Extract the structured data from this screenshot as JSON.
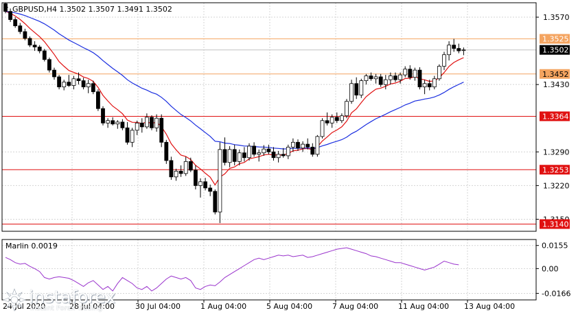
{
  "window": {
    "symbol_title": "GBPUSD,H4  1.3502 1.3507 1.3491 1.3502"
  },
  "price_axis": {
    "ticks": [
      "1.3570",
      "1.3430",
      "1.3290",
      "1.3220",
      "1.3150"
    ]
  },
  "levels": [
    {
      "label": "1.3525",
      "value": 1.3525,
      "color": "#f4a460",
      "text_color": "#ffffff"
    },
    {
      "label": "1.3452",
      "value": 1.3452,
      "color": "#f4a460",
      "text_color": "#000000"
    },
    {
      "label": "1.3364",
      "value": 1.3364,
      "color": "#e01010",
      "text_color": "#ffffff"
    },
    {
      "label": "1.3253",
      "value": 1.3253,
      "color": "#e01010",
      "text_color": "#ffffff"
    },
    {
      "label": "1.3140",
      "value": 1.314,
      "color": "#e01010",
      "text_color": "#ffffff"
    }
  ],
  "current_price": {
    "label": "1.3502",
    "value": 1.3502
  },
  "time_axis": {
    "labels": [
      "24 Jul 2020",
      "28 Jul 04:00",
      "30 Jul 04:00",
      "1 Aug 04:00",
      "5 Aug 04:00",
      "7 Aug 04:00",
      "11 Aug 04:00",
      "13 Aug 04:00"
    ]
  },
  "indicator": {
    "name": "Marlin 0.0019",
    "ticks": [
      "0.0155",
      "0.00",
      "-0.0166"
    ],
    "color": "#9932cc"
  },
  "branding": {
    "name": "instaforex",
    "tagline": "Instant Forex Trading"
  },
  "colors": {
    "grid": "#d4d4d4",
    "bull_body": "#ffffff",
    "bear_body": "#000000",
    "candle_outline": "#000000",
    "ma_fast": "#e01010",
    "ma_slow": "#1a2ee0",
    "price_tag_bg": "#000000"
  },
  "chart_data": {
    "type": "candlestick",
    "title": "GBPUSD,H4  1.3502 1.3507 1.3491 1.3502",
    "ylim": [
      1.3125,
      1.36
    ],
    "candles": [
      [
        1.3598,
        1.3605,
        1.3578,
        1.3582
      ],
      [
        1.3582,
        1.3588,
        1.356,
        1.3565
      ],
      [
        1.3565,
        1.357,
        1.3548,
        1.3552
      ],
      [
        1.3552,
        1.3558,
        1.3535,
        1.354
      ],
      [
        1.354,
        1.3546,
        1.3522,
        1.3526
      ],
      [
        1.3526,
        1.353,
        1.3508,
        1.3512
      ],
      [
        1.3512,
        1.352,
        1.35,
        1.3508
      ],
      [
        1.3508,
        1.3512,
        1.3495,
        1.35
      ],
      [
        1.35,
        1.3504,
        1.3478,
        1.3482
      ],
      [
        1.3482,
        1.3486,
        1.3455,
        1.346
      ],
      [
        1.346,
        1.3465,
        1.344,
        1.3446
      ],
      [
        1.3446,
        1.345,
        1.342,
        1.3425
      ],
      [
        1.3425,
        1.344,
        1.3418,
        1.3435
      ],
      [
        1.3435,
        1.345,
        1.3425,
        1.3428
      ],
      [
        1.3428,
        1.3448,
        1.342,
        1.3442
      ],
      [
        1.3442,
        1.3455,
        1.343,
        1.3438
      ],
      [
        1.3438,
        1.3444,
        1.342,
        1.3425
      ],
      [
        1.3425,
        1.344,
        1.3412,
        1.3432
      ],
      [
        1.3432,
        1.3438,
        1.341,
        1.3415
      ],
      [
        1.3415,
        1.342,
        1.3375,
        1.338
      ],
      [
        1.338,
        1.3385,
        1.3345,
        1.335
      ],
      [
        1.335,
        1.336,
        1.334,
        1.3355
      ],
      [
        1.3355,
        1.3362,
        1.3345,
        1.3348
      ],
      [
        1.3348,
        1.3356,
        1.3338,
        1.3352
      ],
      [
        1.3352,
        1.3358,
        1.3335,
        1.334
      ],
      [
        1.334,
        1.3352,
        1.3305,
        1.331
      ],
      [
        1.331,
        1.334,
        1.33,
        1.3335
      ],
      [
        1.3335,
        1.3355,
        1.3325,
        1.335
      ],
      [
        1.335,
        1.336,
        1.333,
        1.3342
      ],
      [
        1.3342,
        1.337,
        1.3338,
        1.3362
      ],
      [
        1.3362,
        1.3366,
        1.3335,
        1.334
      ],
      [
        1.334,
        1.3368,
        1.3332,
        1.336
      ],
      [
        1.336,
        1.3368,
        1.33,
        1.331
      ],
      [
        1.331,
        1.3315,
        1.3265,
        1.3272
      ],
      [
        1.3272,
        1.328,
        1.3232,
        1.3238
      ],
      [
        1.3238,
        1.3255,
        1.323,
        1.325
      ],
      [
        1.325,
        1.3262,
        1.3238,
        1.3245
      ],
      [
        1.3245,
        1.328,
        1.324,
        1.327
      ],
      [
        1.327,
        1.3278,
        1.3248,
        1.3252
      ],
      [
        1.3252,
        1.3262,
        1.3212,
        1.322
      ],
      [
        1.322,
        1.3235,
        1.3195,
        1.3228
      ],
      [
        1.3228,
        1.3236,
        1.321,
        1.3215
      ],
      [
        1.3215,
        1.3222,
        1.3198,
        1.3208
      ],
      [
        1.3208,
        1.3212,
        1.316,
        1.3165
      ],
      [
        1.3165,
        1.331,
        1.3142,
        1.3295
      ],
      [
        1.3295,
        1.332,
        1.3262,
        1.3268
      ],
      [
        1.3268,
        1.3302,
        1.3258,
        1.3295
      ],
      [
        1.3295,
        1.3305,
        1.3262,
        1.327
      ],
      [
        1.327,
        1.3295,
        1.3262,
        1.3288
      ],
      [
        1.3288,
        1.33,
        1.327,
        1.3278
      ],
      [
        1.3278,
        1.3308,
        1.3272,
        1.3302
      ],
      [
        1.3302,
        1.331,
        1.328,
        1.3285
      ],
      [
        1.3285,
        1.3295,
        1.327,
        1.3288
      ],
      [
        1.3288,
        1.3304,
        1.3282,
        1.3296
      ],
      [
        1.3296,
        1.3305,
        1.3285,
        1.329
      ],
      [
        1.329,
        1.33,
        1.3272,
        1.3278
      ],
      [
        1.3278,
        1.3292,
        1.3268,
        1.3285
      ],
      [
        1.3285,
        1.3298,
        1.3278,
        1.3282
      ],
      [
        1.3282,
        1.3305,
        1.3275,
        1.33
      ],
      [
        1.33,
        1.3318,
        1.329,
        1.331
      ],
      [
        1.331,
        1.3316,
        1.3292,
        1.3298
      ],
      [
        1.3298,
        1.3312,
        1.329,
        1.3306
      ],
      [
        1.3306,
        1.3318,
        1.3295,
        1.33
      ],
      [
        1.33,
        1.3308,
        1.328,
        1.3285
      ],
      [
        1.3285,
        1.3325,
        1.328,
        1.3322
      ],
      [
        1.3322,
        1.336,
        1.3318,
        1.3355
      ],
      [
        1.3355,
        1.3372,
        1.3345,
        1.335
      ],
      [
        1.335,
        1.3368,
        1.334,
        1.3362
      ],
      [
        1.3362,
        1.3372,
        1.335,
        1.3355
      ],
      [
        1.3355,
        1.337,
        1.335,
        1.3365
      ],
      [
        1.3365,
        1.34,
        1.336,
        1.3395
      ],
      [
        1.3395,
        1.344,
        1.339,
        1.3432
      ],
      [
        1.3432,
        1.3445,
        1.34,
        1.3408
      ],
      [
        1.3408,
        1.3442,
        1.3402,
        1.3438
      ],
      [
        1.3438,
        1.3452,
        1.343,
        1.3448
      ],
      [
        1.3448,
        1.3455,
        1.3438,
        1.3442
      ],
      [
        1.3442,
        1.3452,
        1.3432,
        1.3446
      ],
      [
        1.3446,
        1.3452,
        1.3425,
        1.343
      ],
      [
        1.343,
        1.345,
        1.342,
        1.344
      ],
      [
        1.344,
        1.3455,
        1.343,
        1.3448
      ],
      [
        1.3448,
        1.3455,
        1.3435,
        1.344
      ],
      [
        1.344,
        1.3455,
        1.3432,
        1.345
      ],
      [
        1.345,
        1.3468,
        1.3445,
        1.3462
      ],
      [
        1.3462,
        1.347,
        1.344,
        1.3445
      ],
      [
        1.3445,
        1.3465,
        1.3438,
        1.346
      ],
      [
        1.346,
        1.3466,
        1.342,
        1.3425
      ],
      [
        1.3425,
        1.344,
        1.341,
        1.3432
      ],
      [
        1.3432,
        1.344,
        1.3418,
        1.3425
      ],
      [
        1.3425,
        1.3448,
        1.342,
        1.3442
      ],
      [
        1.3442,
        1.3472,
        1.3438,
        1.3468
      ],
      [
        1.3468,
        1.3498,
        1.346,
        1.3492
      ],
      [
        1.3492,
        1.352,
        1.348,
        1.3512
      ],
      [
        1.3512,
        1.3525,
        1.3498,
        1.3505
      ],
      [
        1.3505,
        1.3515,
        1.3495,
        1.35
      ],
      [
        1.3502,
        1.3507,
        1.3491,
        1.3502
      ]
    ],
    "indicator_values": [
      0.0075,
      0.006,
      0.004,
      0.003,
      0.0035,
      0.0015,
      0.0,
      -0.002,
      -0.006,
      -0.007,
      -0.006,
      -0.0055,
      -0.006,
      -0.0065,
      -0.008,
      -0.01,
      -0.012,
      -0.0095,
      -0.008,
      -0.011,
      -0.014,
      -0.012,
      -0.015,
      -0.01,
      -0.006,
      -0.008,
      -0.01,
      -0.013,
      -0.014,
      -0.012,
      -0.015,
      -0.013,
      -0.01,
      -0.007,
      -0.005,
      -0.006,
      -0.007,
      -0.006,
      -0.008,
      -0.013,
      -0.014,
      -0.012,
      -0.011,
      -0.0115,
      -0.009,
      -0.006,
      -0.004,
      -0.002,
      0.0,
      0.002,
      0.004,
      0.006,
      0.007,
      0.006,
      0.007,
      0.008,
      0.009,
      0.0085,
      0.009,
      0.008,
      0.0085,
      0.009,
      0.0075,
      0.008,
      0.009,
      0.01,
      0.011,
      0.012,
      0.013,
      0.0135,
      0.014,
      0.013,
      0.012,
      0.011,
      0.01,
      0.0085,
      0.008,
      0.007,
      0.006,
      0.005,
      0.004,
      0.004,
      0.003,
      0.002,
      0.001,
      0.0,
      -0.001,
      0.0,
      0.001,
      0.003,
      0.005,
      0.004,
      0.003,
      0.0025
    ]
  }
}
